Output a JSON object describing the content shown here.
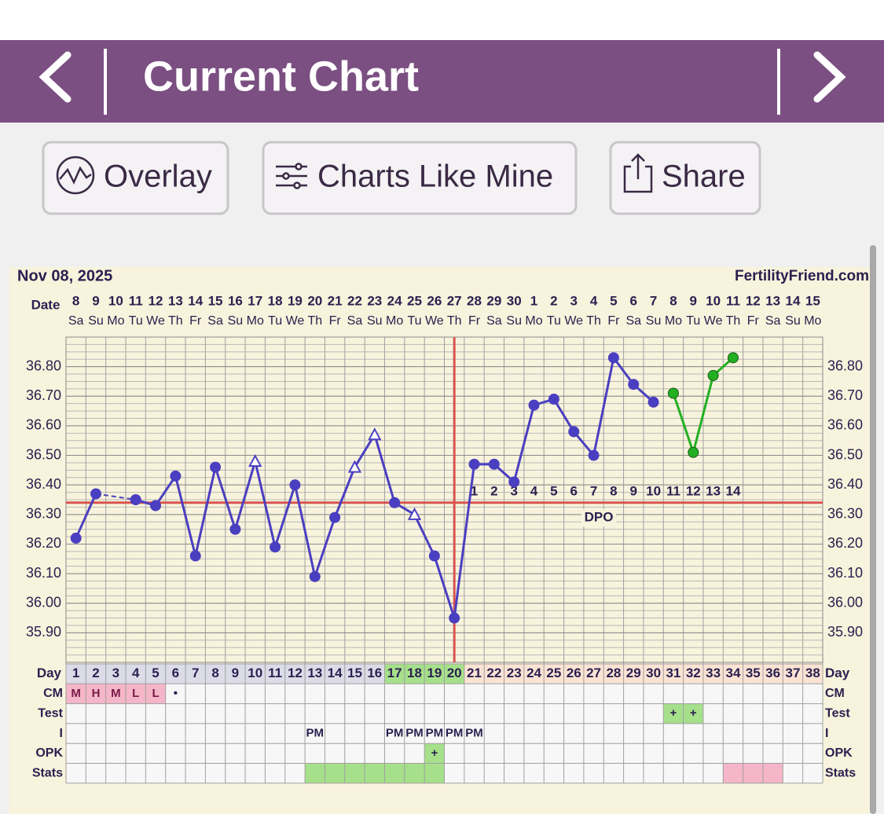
{
  "header": {
    "title": "Current Chart"
  },
  "buttons": [
    "Overlay",
    "Charts Like Mine",
    "Share"
  ],
  "chart_data": {
    "type": "line",
    "title": "Nov 08, 2025",
    "site": "FertilityFriend.com",
    "date_label": "Date",
    "x": [
      "8",
      "9",
      "10",
      "11",
      "12",
      "13",
      "14",
      "15",
      "16",
      "17",
      "18",
      "19",
      "20",
      "21",
      "22",
      "23",
      "24",
      "25",
      "26",
      "27",
      "28",
      "29",
      "30",
      "1",
      "2",
      "3",
      "4",
      "5",
      "6",
      "7",
      "8",
      "9",
      "10",
      "11",
      "12",
      "13",
      "14",
      "15"
    ],
    "weekdays": [
      "Sa",
      "Su",
      "Mo",
      "Tu",
      "We",
      "Th",
      "Fr",
      "Sa",
      "Su",
      "Mo",
      "Tu",
      "We",
      "Th",
      "Fr",
      "Sa",
      "Su",
      "Mo",
      "Tu",
      "We",
      "Th",
      "Fr",
      "Sa",
      "Su",
      "Mo",
      "Tu",
      "We",
      "Th",
      "Fr",
      "Sa",
      "Su",
      "Mo",
      "Tu",
      "We",
      "Th",
      "Fr",
      "Sa",
      "Su",
      "Mo"
    ],
    "series": [
      {
        "color": "#4a3fc0",
        "values": [
          36.22,
          36.37,
          null,
          36.35,
          36.33,
          36.43,
          36.16,
          36.46,
          36.25,
          36.48,
          36.19,
          36.4,
          36.09,
          36.29,
          36.46,
          36.57,
          36.34,
          36.3,
          36.16,
          35.95,
          36.47,
          36.47,
          36.41,
          36.67,
          36.69,
          36.58,
          36.5,
          36.83,
          36.74,
          36.68,
          null,
          null,
          null,
          null,
          null,
          null,
          null,
          null
        ],
        "open_triangle_indices": [
          9,
          14,
          15,
          17
        ]
      },
      {
        "color": "#22b022",
        "values": [
          null,
          null,
          null,
          null,
          null,
          null,
          null,
          null,
          null,
          null,
          null,
          null,
          null,
          null,
          null,
          null,
          null,
          null,
          null,
          null,
          null,
          null,
          null,
          null,
          null,
          null,
          null,
          null,
          null,
          null,
          36.71,
          36.51,
          36.77,
          36.83,
          null,
          null,
          null,
          null
        ]
      }
    ],
    "ylim": [
      35.8,
      36.9
    ],
    "yticks": [
      {
        "value": 35.9,
        "label": "35.90"
      },
      {
        "value": 36.0,
        "label": "36.00"
      },
      {
        "value": 36.1,
        "label": "36.10"
      },
      {
        "value": 36.2,
        "label": "36.20"
      },
      {
        "value": 36.3,
        "label": "36.30"
      },
      {
        "value": 36.4,
        "label": "36.40"
      },
      {
        "value": 36.5,
        "label": "36.50"
      },
      {
        "value": 36.6,
        "label": "36.60"
      },
      {
        "value": 36.7,
        "label": "36.70"
      },
      {
        "value": 36.8,
        "label": "36.80"
      }
    ],
    "grid": true,
    "coverline": 36.34,
    "coverline_color": "#d9534f",
    "ovulation_day": 20,
    "dpo_label": "DPO",
    "dpo": [
      null,
      null,
      null,
      null,
      null,
      null,
      null,
      null,
      null,
      null,
      null,
      null,
      null,
      null,
      null,
      null,
      null,
      null,
      null,
      null,
      1,
      2,
      3,
      4,
      5,
      6,
      7,
      8,
      9,
      10,
      11,
      12,
      13,
      14,
      null,
      null,
      null,
      null
    ],
    "day_label": "Day",
    "cycle_days": [
      1,
      2,
      3,
      4,
      5,
      6,
      7,
      8,
      9,
      10,
      11,
      12,
      13,
      14,
      15,
      16,
      17,
      18,
      19,
      20,
      21,
      22,
      23,
      24,
      25,
      26,
      27,
      28,
      29,
      30,
      31,
      32,
      33,
      34,
      35,
      36,
      37,
      38
    ],
    "day_colors": [
      "#dcdce8",
      "#dcdce8",
      "#dcdce8",
      "#dcdce8",
      "#dcdce8",
      "#dcdce8",
      "#dcdce8",
      "#dcdce8",
      "#dcdce8",
      "#dcdce8",
      "#dcdce8",
      "#dcdce8",
      "#dcdce8",
      "#dcdce8",
      "#dcdce8",
      "#dcdce8",
      "#a6e08a",
      "#a6e08a",
      "#a6e08a",
      "#a6e08a",
      "#fbe3d4",
      "#fbe3d4",
      "#fbe3d4",
      "#fbe3d4",
      "#fbe3d4",
      "#fbe3d4",
      "#fbe3d4",
      "#fbe3d4",
      "#fbe3d4",
      "#fbe3d4",
      "#fbe3d4",
      "#fbe3d4",
      "#fbe3d4",
      "#fbe3d4",
      "#fbe3d4",
      "#fbe3d4",
      "#fbe3d4",
      "#fbe3d4"
    ],
    "rows": [
      {
        "label": "CM",
        "cells": [
          "M",
          "H",
          "M",
          "L",
          "L",
          "•",
          null,
          null,
          null,
          null,
          null,
          null,
          null,
          null,
          null,
          null,
          null,
          null,
          null,
          null,
          null,
          null,
          null,
          null,
          null,
          null,
          null,
          null,
          null,
          null,
          null,
          null,
          null,
          null,
          null,
          null,
          null,
          null
        ],
        "colors": [
          "#f4b6c8",
          "#f4b6c8",
          "#f4b6c8",
          "#f4b6c8",
          "#f4b6c8",
          null,
          null,
          null,
          null,
          null,
          null,
          null,
          null,
          null,
          null,
          null,
          null,
          null,
          null,
          null,
          null,
          null,
          null,
          null,
          null,
          null,
          null,
          null,
          null,
          null,
          null,
          null,
          null,
          null,
          null,
          null,
          null,
          null
        ]
      },
      {
        "label": "Test",
        "cells": [
          null,
          null,
          null,
          null,
          null,
          null,
          null,
          null,
          null,
          null,
          null,
          null,
          null,
          null,
          null,
          null,
          null,
          null,
          null,
          null,
          null,
          null,
          null,
          null,
          null,
          null,
          null,
          null,
          null,
          null,
          "+",
          "+",
          null,
          null,
          null,
          null,
          null,
          null
        ],
        "colors": [
          null,
          null,
          null,
          null,
          null,
          null,
          null,
          null,
          null,
          null,
          null,
          null,
          null,
          null,
          null,
          null,
          null,
          null,
          null,
          null,
          null,
          null,
          null,
          null,
          null,
          null,
          null,
          null,
          null,
          null,
          "#a6e08a",
          "#a6e08a",
          null,
          null,
          null,
          null,
          null,
          null
        ]
      },
      {
        "label": "I",
        "cells": [
          null,
          null,
          null,
          null,
          null,
          null,
          null,
          null,
          null,
          null,
          null,
          null,
          "PM",
          null,
          null,
          null,
          "PM",
          "PM",
          "PM",
          "PM",
          "PM",
          null,
          null,
          null,
          null,
          null,
          null,
          null,
          null,
          null,
          null,
          null,
          null,
          null,
          null,
          null,
          null,
          null
        ]
      },
      {
        "label": "OPK",
        "cells": [
          null,
          null,
          null,
          null,
          null,
          null,
          null,
          null,
          null,
          null,
          null,
          null,
          null,
          null,
          null,
          null,
          null,
          null,
          "+",
          null,
          null,
          null,
          null,
          null,
          null,
          null,
          null,
          null,
          null,
          null,
          null,
          null,
          null,
          null,
          null,
          null,
          null,
          null
        ],
        "colors": [
          null,
          null,
          null,
          null,
          null,
          null,
          null,
          null,
          null,
          null,
          null,
          null,
          null,
          null,
          null,
          null,
          null,
          null,
          "#a6e08a",
          null,
          null,
          null,
          null,
          null,
          null,
          null,
          null,
          null,
          null,
          null,
          null,
          null,
          null,
          null,
          null,
          null,
          null,
          null
        ]
      },
      {
        "label": "Stats",
        "colors": [
          null,
          null,
          null,
          null,
          null,
          null,
          null,
          null,
          null,
          null,
          null,
          null,
          "#a6e08a",
          "#a6e08a",
          "#a6e08a",
          "#a6e08a",
          "#a6e08a",
          "#a6e08a",
          "#a6e08a",
          null,
          null,
          null,
          null,
          null,
          null,
          null,
          null,
          null,
          null,
          null,
          null,
          null,
          null,
          "#f4b6c8",
          "#f4b6c8",
          "#f4b6c8",
          null,
          null
        ]
      }
    ]
  }
}
